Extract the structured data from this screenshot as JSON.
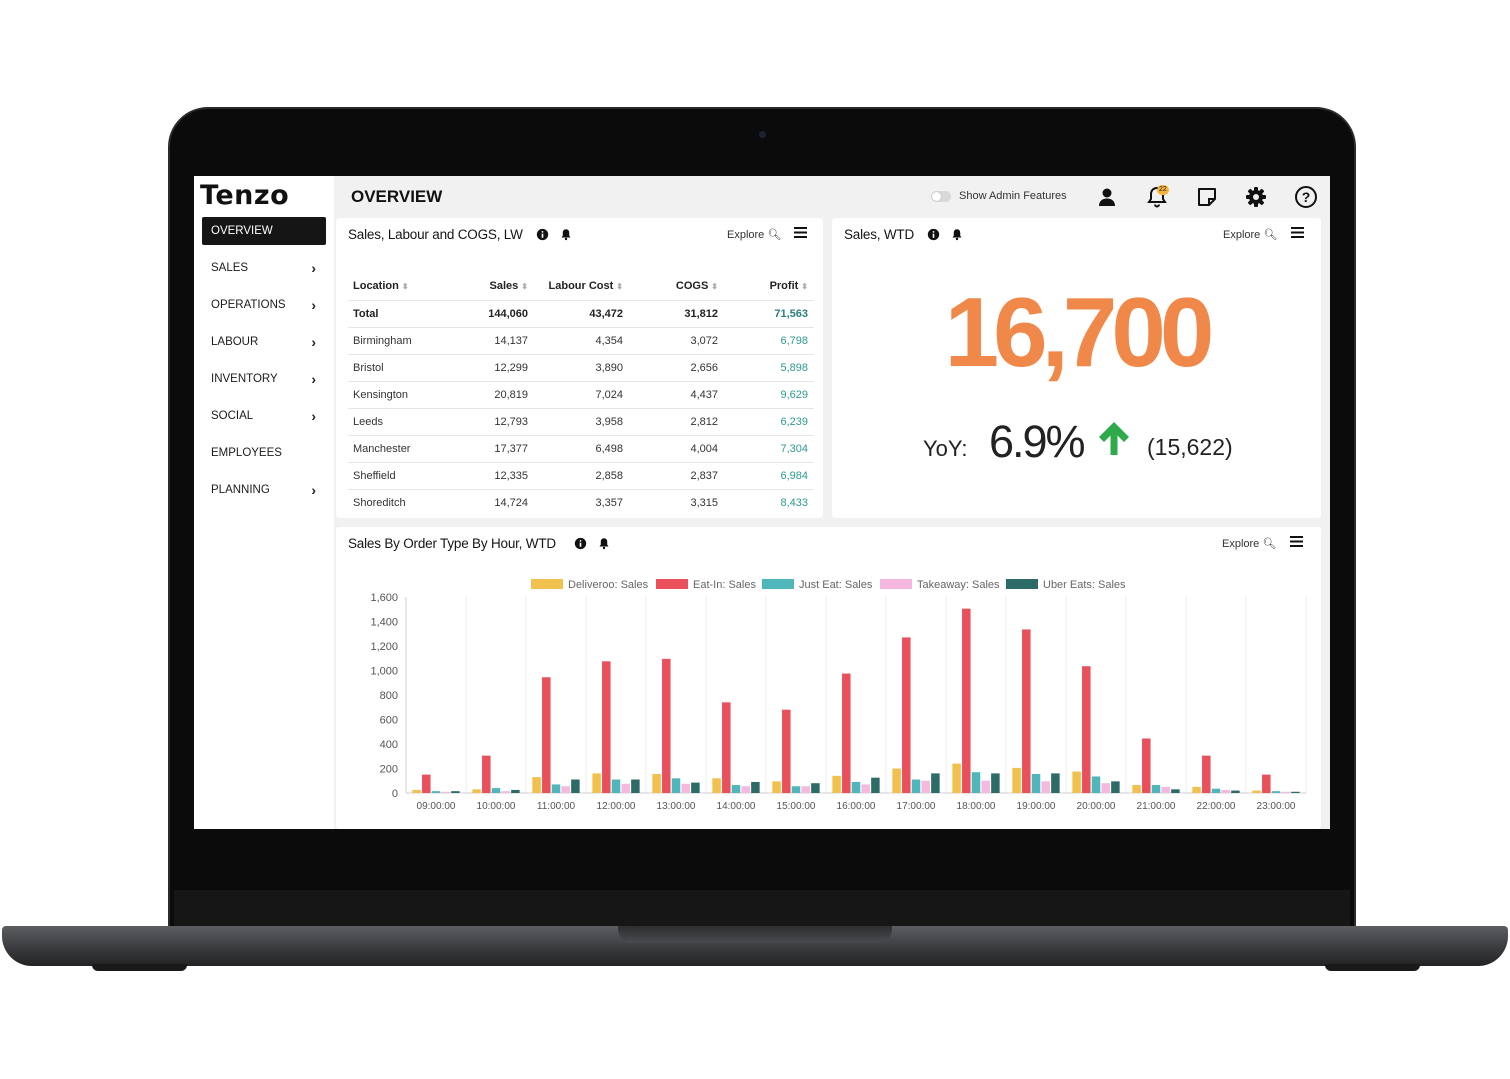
{
  "app": {
    "logo": "Tenzo",
    "page_title": "OVERVIEW",
    "admin_toggle_label": "Show Admin Features",
    "notification_count": "22"
  },
  "sidebar": {
    "items": [
      {
        "label": "OVERVIEW",
        "active": true,
        "has_submenu": false
      },
      {
        "label": "SALES",
        "has_submenu": true
      },
      {
        "label": "OPERATIONS",
        "has_submenu": true
      },
      {
        "label": "LABOUR",
        "has_submenu": true
      },
      {
        "label": "INVENTORY",
        "has_submenu": true
      },
      {
        "label": "SOCIAL",
        "has_submenu": true
      },
      {
        "label": "EMPLOYEES",
        "has_submenu": false
      },
      {
        "label": "PLANNING",
        "has_submenu": true
      }
    ]
  },
  "explore_label": "Explore",
  "sales_table": {
    "title": "Sales, Labour and COGS, LW",
    "columns": [
      "Location",
      "Sales",
      "Labour Cost",
      "COGS",
      "Profit"
    ],
    "rows": [
      [
        "Total",
        "144,060",
        "43,472",
        "31,812",
        "71,563"
      ],
      [
        "Birmingham",
        "14,137",
        "4,354",
        "3,072",
        "6,798"
      ],
      [
        "Bristol",
        "12,299",
        "3,890",
        "2,656",
        "5,898"
      ],
      [
        "Kensington",
        "20,819",
        "7,024",
        "4,437",
        "9,629"
      ],
      [
        "Leeds",
        "12,793",
        "3,958",
        "2,812",
        "6,239"
      ],
      [
        "Manchester",
        "17,377",
        "6,498",
        "4,004",
        "7,304"
      ],
      [
        "Sheffield",
        "12,335",
        "2,858",
        "2,837",
        "6,984"
      ],
      [
        "Shoreditch",
        "14,724",
        "3,357",
        "3,315",
        "8,433"
      ]
    ]
  },
  "sales_wtd": {
    "title": "Sales, WTD",
    "value": "16,700",
    "yoy_label": "YoY:",
    "yoy_percent": "6.9%",
    "yoy_direction": "up",
    "previous": "(15,622)",
    "value_color": "#f0884a",
    "arrow_color": "#2eaa4a"
  },
  "hourly_chart": {
    "title": "Sales By Order Type By Hour, WTD"
  },
  "chart_data": {
    "type": "bar",
    "categories": [
      "09:00:00",
      "10:00:00",
      "11:00:00",
      "12:00:00",
      "13:00:00",
      "14:00:00",
      "15:00:00",
      "16:00:00",
      "17:00:00",
      "18:00:00",
      "19:00:00",
      "20:00:00",
      "21:00:00",
      "22:00:00",
      "23:00:00"
    ],
    "series": [
      {
        "name": "Deliveroo: Sales",
        "color": "#f2c04f",
        "values": [
          25,
          30,
          130,
          160,
          155,
          120,
          95,
          140,
          200,
          240,
          205,
          175,
          65,
          50,
          20
        ]
      },
      {
        "name": "Eat-In: Sales",
        "color": "#e8505b",
        "values": [
          150,
          305,
          945,
          1075,
          1095,
          740,
          680,
          975,
          1270,
          1505,
          1335,
          1035,
          445,
          305,
          150
        ]
      },
      {
        "name": "Just Eat: Sales",
        "color": "#4fb7bb",
        "values": [
          15,
          40,
          70,
          110,
          120,
          65,
          55,
          90,
          110,
          170,
          155,
          135,
          65,
          35,
          15
        ]
      },
      {
        "name": "Takeaway: Sales",
        "color": "#f5b8de",
        "values": [
          10,
          15,
          55,
          75,
          75,
          55,
          55,
          70,
          100,
          100,
          95,
          80,
          50,
          25,
          10
        ]
      },
      {
        "name": "Uber Eats: Sales",
        "color": "#2c6b66",
        "values": [
          15,
          25,
          110,
          110,
          85,
          90,
          80,
          125,
          160,
          160,
          160,
          95,
          30,
          20,
          10
        ]
      }
    ],
    "ylim": [
      0,
      1600
    ],
    "yticks": [
      0,
      200,
      400,
      600,
      800,
      1000,
      1200,
      1400,
      1600
    ],
    "ytick_labels": [
      "0",
      "200",
      "400",
      "600",
      "800",
      "1,000",
      "1,200",
      "1,400",
      "1,600"
    ],
    "legend_position": "top-center",
    "grid": "vertical"
  }
}
